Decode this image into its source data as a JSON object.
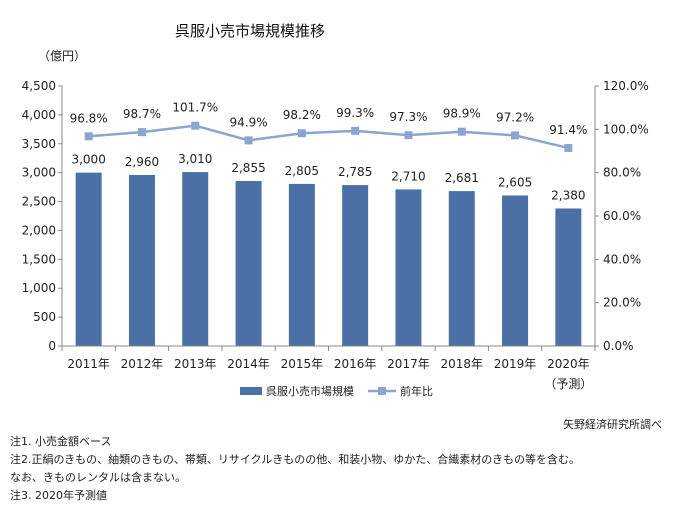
{
  "chart_data": {
    "type": "bar",
    "title": "呉服小売市場規模推移",
    "ylabel": "（億円）",
    "categories": [
      "2011年",
      "2012年",
      "2013年",
      "2014年",
      "2015年",
      "2016年",
      "2017年",
      "2018年",
      "2019年",
      "2020年"
    ],
    "category_note": "（予測）",
    "series": [
      {
        "name": "呉服小売市場規模",
        "type": "bar",
        "axis": "left",
        "color": "#4a70a6",
        "values": [
          3000,
          2960,
          3010,
          2855,
          2805,
          2785,
          2710,
          2681,
          2605,
          2380
        ],
        "labels": [
          "3,000",
          "2,960",
          "3,010",
          "2,855",
          "2,805",
          "2,785",
          "2,710",
          "2,681",
          "2,605",
          "2,380"
        ]
      },
      {
        "name": "前年比",
        "type": "line",
        "axis": "right",
        "color": "#8aa5d0",
        "values": [
          96.8,
          98.7,
          101.7,
          94.9,
          98.2,
          99.3,
          97.3,
          98.9,
          97.2,
          91.4
        ],
        "labels": [
          "96.8%",
          "98.7%",
          "101.7%",
          "94.9%",
          "98.2%",
          "99.3%",
          "97.3%",
          "98.9%",
          "97.2%",
          "91.4%"
        ]
      }
    ],
    "ylim": [
      0,
      4500
    ],
    "y2lim": [
      0,
      120
    ],
    "yticks": [
      "0",
      "500",
      "1,000",
      "1,500",
      "2,000",
      "2,500",
      "3,000",
      "3,500",
      "4,000",
      "4,500"
    ],
    "y2ticks": [
      "0.0%",
      "20.0%",
      "40.0%",
      "60.0%",
      "80.0%",
      "100.0%",
      "120.0%"
    ],
    "legend_position": "bottom",
    "source": "矢野経済研究所調べ",
    "notes": [
      "注1. 小売金額ベース",
      "注2.正絹のきもの、紬類のきもの、帯類、リサイクルきものの他、和装小物、ゆかた、合繊素材のきもの等を含む。",
      "なお、きものレンタルは含まない。",
      "注3. 2020年予測値"
    ]
  }
}
